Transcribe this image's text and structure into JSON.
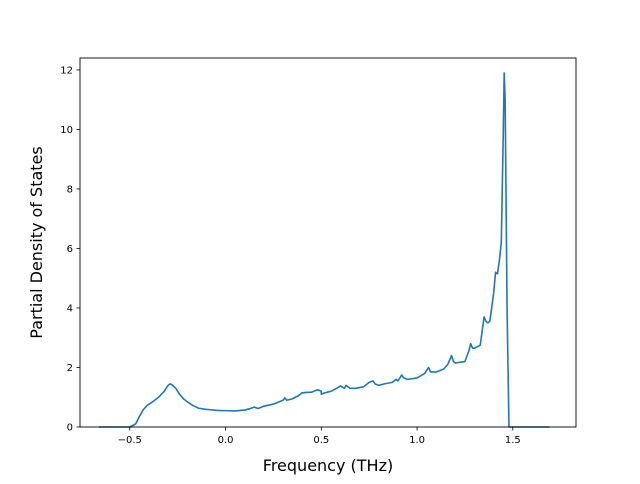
{
  "chart_data": {
    "type": "line",
    "title": "",
    "xlabel": "Frequency (THz)",
    "ylabel": "Partial Density of States",
    "xlim": [
      -0.76,
      1.83
    ],
    "ylim": [
      0,
      12.4
    ],
    "xticks": [
      -0.5,
      0.0,
      0.5,
      1.0,
      1.5
    ],
    "xtick_labels": [
      "−0.5",
      "0.0",
      "0.5",
      "1.0",
      "1.5"
    ],
    "yticks": [
      0,
      2,
      4,
      6,
      8,
      10,
      12
    ],
    "ytick_labels": [
      "0",
      "2",
      "4",
      "6",
      "8",
      "10",
      "12"
    ],
    "grid": false,
    "legend": "none",
    "series": [
      {
        "color": "#1f77b4",
        "x": [
          -0.66,
          -0.5,
          -0.47,
          -0.45,
          -0.43,
          -0.41,
          -0.38,
          -0.35,
          -0.32,
          -0.3,
          -0.29,
          -0.28,
          -0.26,
          -0.24,
          -0.22,
          -0.2,
          -0.17,
          -0.14,
          -0.11,
          -0.08,
          -0.05,
          -0.02,
          0.0,
          0.05,
          0.1,
          0.13,
          0.15,
          0.17,
          0.2,
          0.25,
          0.3,
          0.31,
          0.32,
          0.35,
          0.38,
          0.4,
          0.42,
          0.45,
          0.48,
          0.5,
          0.5,
          0.52,
          0.55,
          0.58,
          0.6,
          0.62,
          0.63,
          0.65,
          0.68,
          0.72,
          0.75,
          0.77,
          0.78,
          0.8,
          0.83,
          0.87,
          0.89,
          0.9,
          0.92,
          0.93,
          0.95,
          1.0,
          1.04,
          1.05,
          1.06,
          1.07,
          1.1,
          1.14,
          1.16,
          1.18,
          1.19,
          1.2,
          1.25,
          1.27,
          1.28,
          1.29,
          1.3,
          1.33,
          1.35,
          1.36,
          1.37,
          1.38,
          1.4,
          1.41,
          1.42,
          1.43,
          1.44,
          1.45,
          1.455,
          1.46,
          1.47,
          1.48,
          1.49,
          1.5,
          1.55,
          1.6,
          1.69
        ],
        "y": [
          0,
          0,
          0.1,
          0.35,
          0.58,
          0.72,
          0.85,
          1.0,
          1.2,
          1.4,
          1.45,
          1.42,
          1.3,
          1.1,
          0.95,
          0.85,
          0.72,
          0.63,
          0.6,
          0.58,
          0.56,
          0.55,
          0.55,
          0.54,
          0.57,
          0.62,
          0.67,
          0.62,
          0.7,
          0.77,
          0.9,
          0.98,
          0.9,
          0.95,
          1.05,
          1.15,
          1.16,
          1.17,
          1.25,
          1.2,
          1.1,
          1.15,
          1.2,
          1.3,
          1.38,
          1.3,
          1.4,
          1.3,
          1.3,
          1.35,
          1.5,
          1.55,
          1.45,
          1.4,
          1.45,
          1.5,
          1.6,
          1.55,
          1.75,
          1.65,
          1.6,
          1.65,
          1.8,
          1.9,
          2.0,
          1.85,
          1.85,
          1.95,
          2.1,
          2.4,
          2.2,
          2.15,
          2.2,
          2.55,
          2.8,
          2.65,
          2.65,
          2.75,
          3.7,
          3.55,
          3.5,
          3.55,
          4.5,
          5.2,
          5.15,
          5.6,
          6.2,
          9.8,
          11.9,
          11.0,
          4.0,
          0.0,
          0.0,
          0.0,
          0.0,
          0.0,
          0.0
        ]
      }
    ]
  }
}
